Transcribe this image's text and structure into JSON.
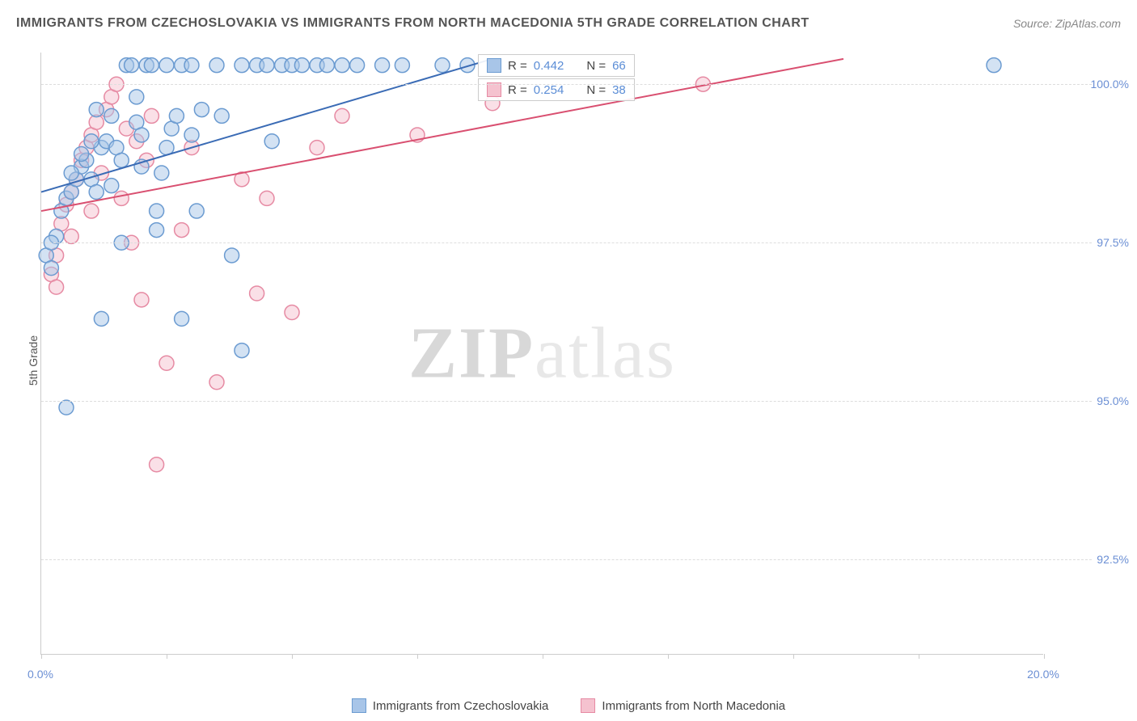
{
  "title": "IMMIGRANTS FROM CZECHOSLOVAKIA VS IMMIGRANTS FROM NORTH MACEDONIA 5TH GRADE CORRELATION CHART",
  "source": "Source: ZipAtlas.com",
  "ylabel": "5th Grade",
  "watermark_bold": "ZIP",
  "watermark_light": "atlas",
  "chart": {
    "type": "scatter",
    "xlim": [
      0.0,
      20.0
    ],
    "ylim": [
      91.0,
      100.5
    ],
    "x_ticks": [
      0.0,
      2.5,
      5.0,
      7.5,
      10.0,
      12.5,
      15.0,
      17.5,
      20.0
    ],
    "x_tick_labels": {
      "0.0": "0.0%",
      "20.0": "20.0%"
    },
    "y_ticks": [
      92.5,
      95.0,
      97.5,
      100.0
    ],
    "y_tick_labels": [
      "92.5%",
      "95.0%",
      "97.5%",
      "100.0%"
    ],
    "background_color": "#ffffff",
    "grid_color": "#dddddd",
    "axis_color": "#cccccc",
    "tick_label_color": "#6b8fd4",
    "title_color": "#555555",
    "marker_radius": 9,
    "marker_opacity": 0.5,
    "line_width": 2
  },
  "series": [
    {
      "name": "Immigrants from Czechoslovakia",
      "color_fill": "#a8c5e8",
      "color_stroke": "#6b9bd1",
      "line_color": "#3a6bb5",
      "R": "0.442",
      "N": "66",
      "regression": {
        "x1": 0.0,
        "y1": 98.3,
        "x2": 9.0,
        "y2": 100.4
      },
      "points": [
        [
          0.1,
          97.3
        ],
        [
          0.2,
          97.1
        ],
        [
          0.3,
          97.6
        ],
        [
          0.4,
          98.0
        ],
        [
          0.5,
          98.2
        ],
        [
          0.6,
          98.3
        ],
        [
          0.7,
          98.5
        ],
        [
          0.8,
          98.7
        ],
        [
          0.9,
          98.8
        ],
        [
          1.0,
          98.5
        ],
        [
          1.1,
          98.3
        ],
        [
          1.2,
          99.0
        ],
        [
          1.3,
          99.1
        ],
        [
          1.4,
          99.5
        ],
        [
          1.5,
          99.0
        ],
        [
          1.6,
          98.8
        ],
        [
          1.7,
          100.3
        ],
        [
          1.8,
          100.3
        ],
        [
          1.9,
          99.4
        ],
        [
          2.0,
          99.2
        ],
        [
          2.1,
          100.3
        ],
        [
          2.2,
          100.3
        ],
        [
          2.3,
          97.7
        ],
        [
          2.4,
          98.6
        ],
        [
          2.5,
          100.3
        ],
        [
          2.6,
          99.3
        ],
        [
          2.7,
          99.5
        ],
        [
          2.8,
          100.3
        ],
        [
          3.0,
          100.3
        ],
        [
          3.1,
          98.0
        ],
        [
          3.5,
          100.3
        ],
        [
          3.6,
          99.5
        ],
        [
          3.8,
          97.3
        ],
        [
          4.0,
          100.3
        ],
        [
          4.3,
          100.3
        ],
        [
          4.5,
          100.3
        ],
        [
          4.6,
          99.1
        ],
        [
          4.8,
          100.3
        ],
        [
          5.0,
          100.3
        ],
        [
          5.2,
          100.3
        ],
        [
          5.5,
          100.3
        ],
        [
          5.7,
          100.3
        ],
        [
          6.0,
          100.3
        ],
        [
          6.3,
          100.3
        ],
        [
          6.8,
          100.3
        ],
        [
          7.2,
          100.3
        ],
        [
          8.0,
          100.3
        ],
        [
          8.5,
          100.3
        ],
        [
          19.0,
          100.3
        ],
        [
          0.2,
          97.5
        ],
        [
          0.5,
          94.9
        ],
        [
          1.6,
          97.5
        ],
        [
          0.8,
          98.9
        ],
        [
          1.0,
          99.1
        ],
        [
          1.2,
          96.3
        ],
        [
          2.0,
          98.7
        ],
        [
          2.3,
          98.0
        ],
        [
          2.8,
          96.3
        ],
        [
          3.2,
          99.6
        ],
        [
          4.0,
          95.8
        ],
        [
          1.4,
          98.4
        ],
        [
          1.9,
          99.8
        ],
        [
          2.5,
          99.0
        ],
        [
          3.0,
          99.2
        ],
        [
          1.1,
          99.6
        ],
        [
          0.6,
          98.6
        ]
      ]
    },
    {
      "name": "Immigrants from North Macedonia",
      "color_fill": "#f5c2cf",
      "color_stroke": "#e68aa3",
      "line_color": "#d94f70",
      "R": "0.254",
      "N": "38",
      "regression": {
        "x1": 0.0,
        "y1": 98.0,
        "x2": 16.0,
        "y2": 100.4
      },
      "points": [
        [
          0.2,
          97.0
        ],
        [
          0.3,
          97.3
        ],
        [
          0.4,
          97.8
        ],
        [
          0.5,
          98.1
        ],
        [
          0.6,
          98.3
        ],
        [
          0.7,
          98.5
        ],
        [
          0.8,
          98.8
        ],
        [
          0.9,
          99.0
        ],
        [
          1.0,
          99.2
        ],
        [
          1.1,
          99.4
        ],
        [
          1.2,
          98.6
        ],
        [
          1.3,
          99.6
        ],
        [
          1.4,
          99.8
        ],
        [
          1.5,
          100.0
        ],
        [
          1.6,
          98.2
        ],
        [
          1.7,
          99.3
        ],
        [
          1.8,
          97.5
        ],
        [
          1.9,
          99.1
        ],
        [
          2.0,
          96.6
        ],
        [
          2.1,
          98.8
        ],
        [
          2.2,
          99.5
        ],
        [
          2.3,
          94.0
        ],
        [
          2.5,
          95.6
        ],
        [
          2.8,
          97.7
        ],
        [
          3.0,
          99.0
        ],
        [
          3.5,
          95.3
        ],
        [
          4.0,
          98.5
        ],
        [
          4.3,
          96.7
        ],
        [
          4.5,
          98.2
        ],
        [
          5.0,
          96.4
        ],
        [
          5.5,
          99.0
        ],
        [
          6.0,
          99.5
        ],
        [
          7.5,
          99.2
        ],
        [
          9.0,
          99.7
        ],
        [
          13.2,
          100.0
        ],
        [
          0.3,
          96.8
        ],
        [
          0.6,
          97.6
        ],
        [
          1.0,
          98.0
        ]
      ]
    }
  ],
  "stat_labels": {
    "R": "R =",
    "N": "N ="
  }
}
